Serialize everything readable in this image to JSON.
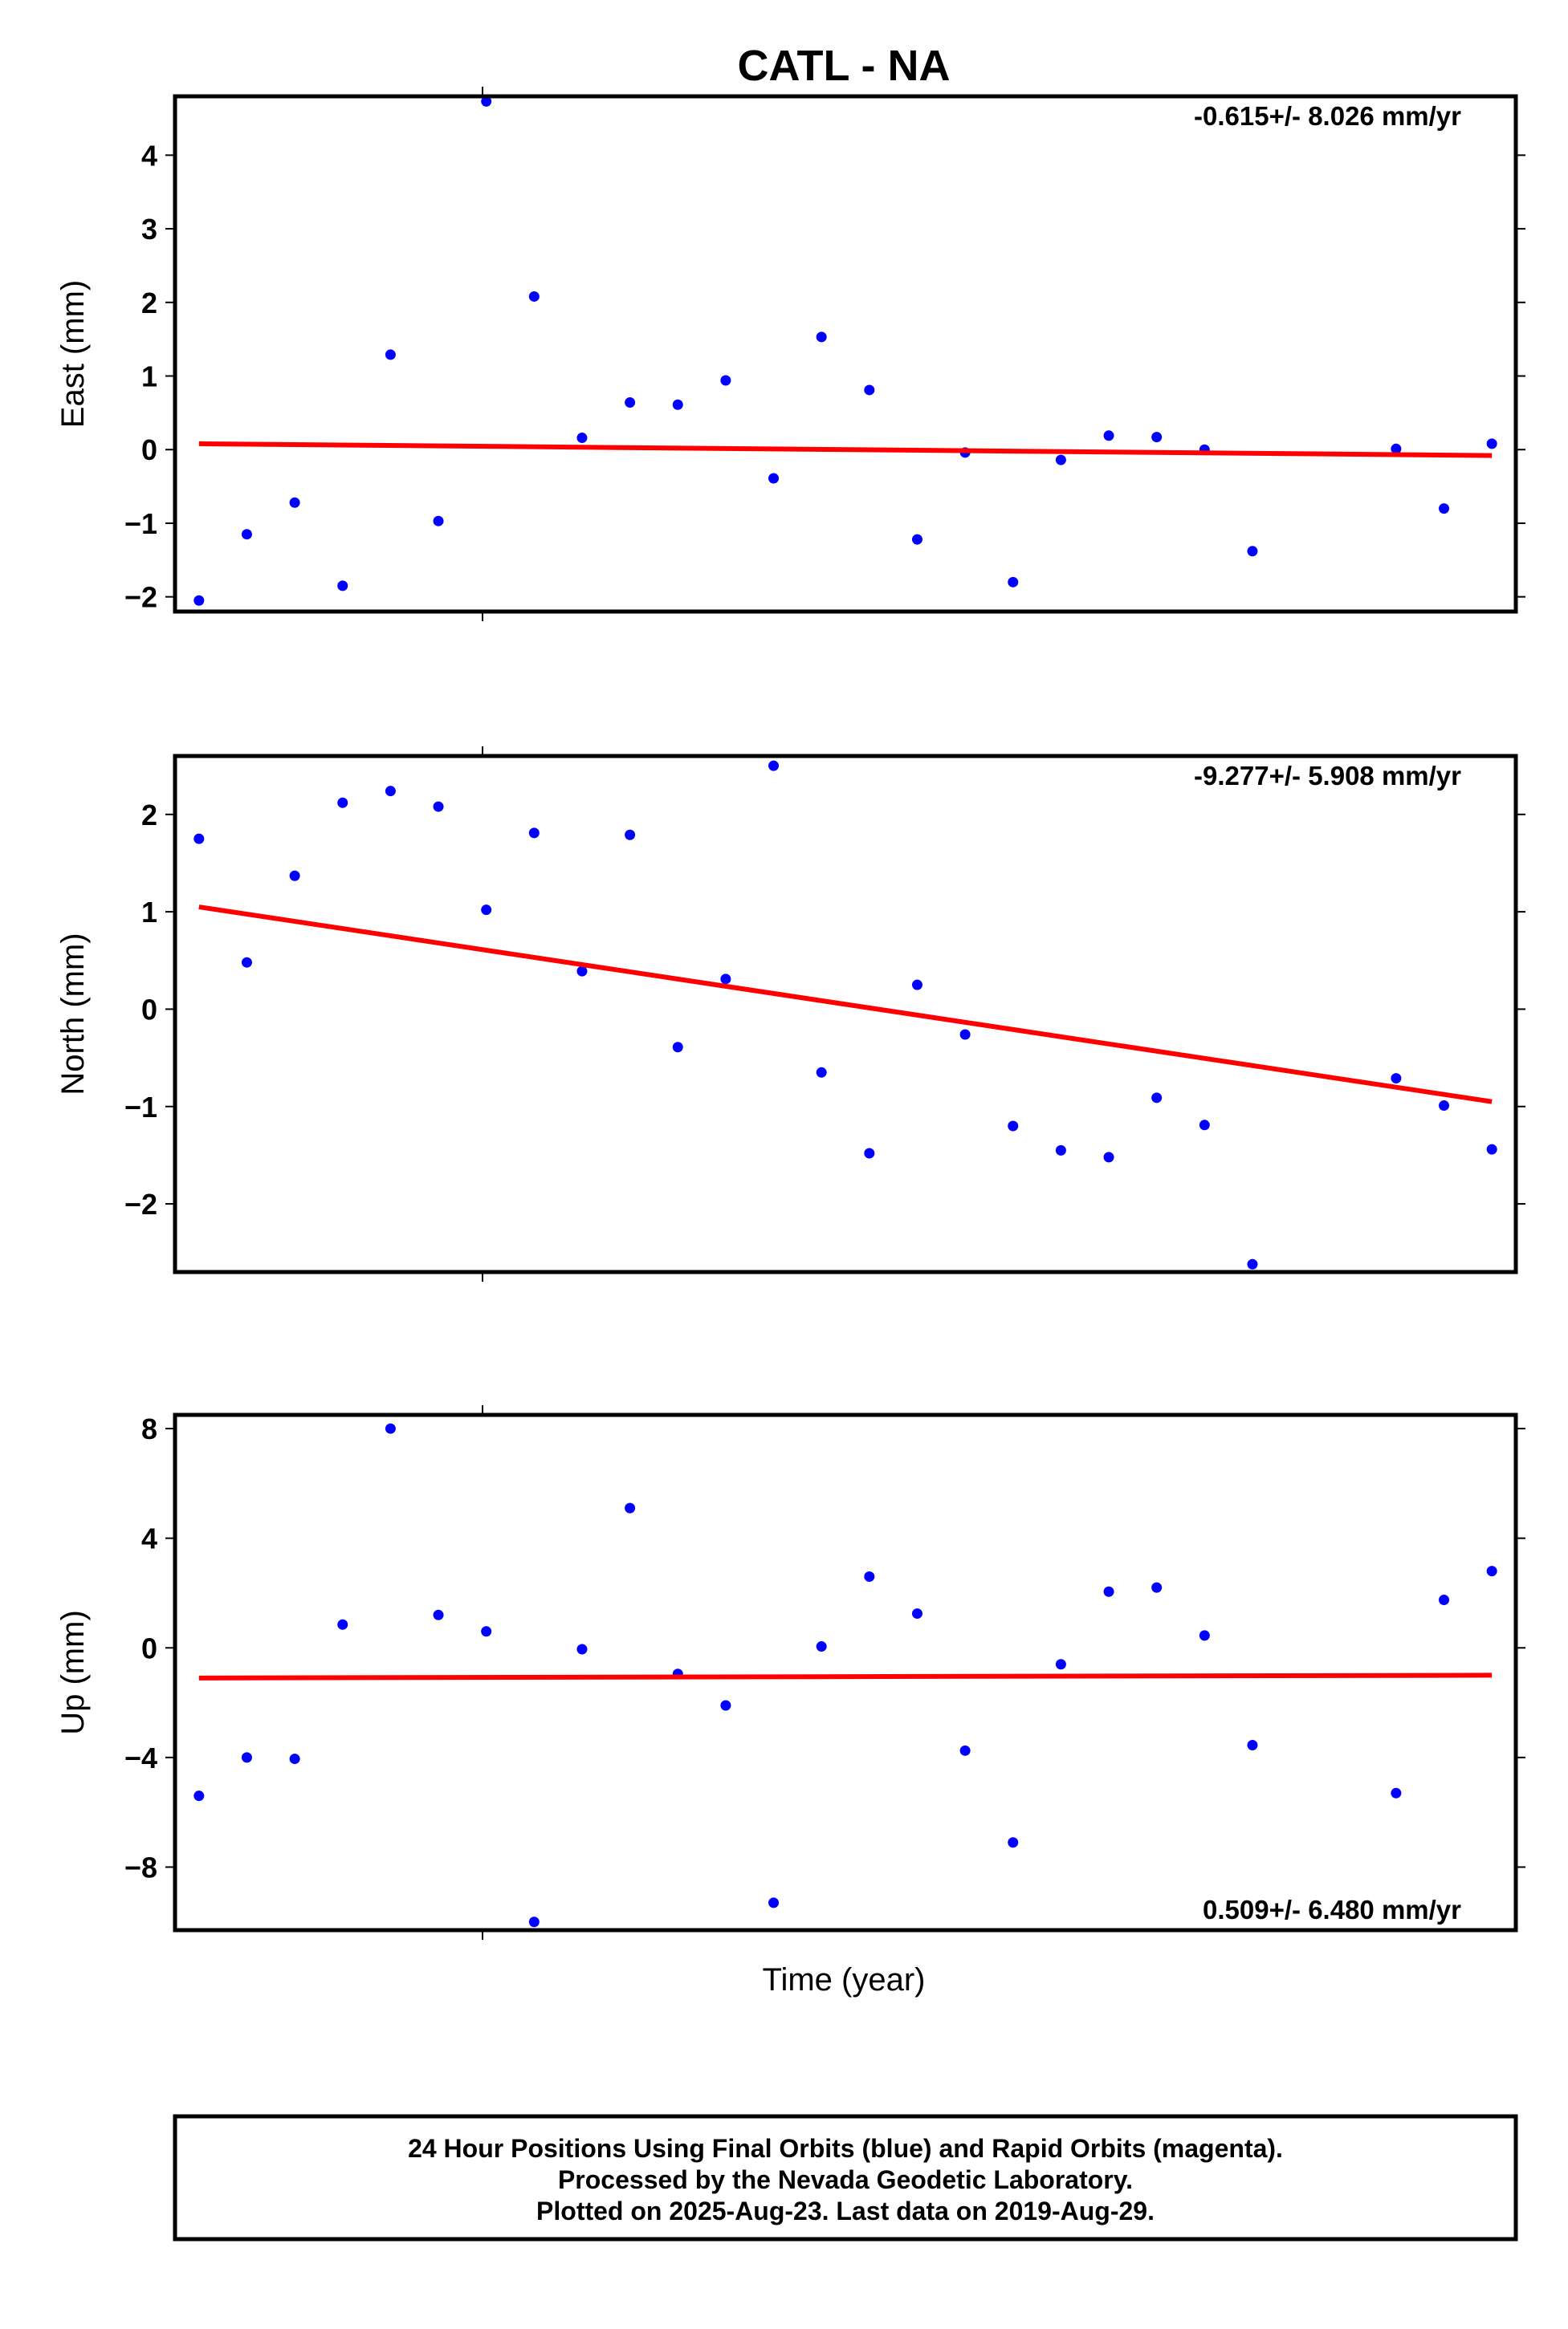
{
  "figure": {
    "title": "CATL - NA",
    "xlabel": "Time (year)",
    "footer": [
      "24 Hour Positions Using Final Orbits (blue) and Rapid Orbits (magenta).",
      "Processed by the Nevada Geodetic Laboratory.",
      "Plotted on 2025-Aug-23. Last data on 2019-Aug-29."
    ]
  },
  "colors": {
    "points": "#0000ff",
    "trend": "#ff0000",
    "frame": "#000000"
  },
  "chart_data": [
    {
      "type": "scatter",
      "ylabel": "East (mm)",
      "rate_label": "-0.615+/- 8.026 mm/yr",
      "rate_position": "top-right",
      "ylim": [
        -2.2,
        4.8
      ],
      "yticks": [
        4,
        3,
        2,
        1,
        0,
        -1,
        -2
      ],
      "ytick_labels": [
        "4",
        "3",
        "2",
        "1",
        "0",
        "−1",
        "−2"
      ],
      "x": [
        0,
        1,
        2,
        3,
        4,
        5,
        6,
        7,
        8,
        9,
        10,
        11,
        12,
        13,
        14,
        15,
        16,
        17,
        18,
        19,
        20,
        21,
        22,
        25,
        26,
        27
      ],
      "y": [
        -2.05,
        -1.15,
        -0.72,
        -1.85,
        1.29,
        -0.97,
        4.73,
        2.08,
        0.16,
        0.64,
        0.61,
        0.94,
        -0.39,
        1.53,
        0.81,
        -1.22,
        -0.04,
        -1.8,
        -0.14,
        0.19,
        0.17,
        0.0,
        -1.38,
        0.01,
        -0.8,
        0.08
      ],
      "trend": {
        "x": [
          0,
          27
        ],
        "y": [
          0.08,
          -0.08
        ]
      }
    },
    {
      "type": "scatter",
      "ylabel": "North (mm)",
      "rate_label": "-9.277+/- 5.908 mm/yr",
      "rate_position": "top-right",
      "ylim": [
        -2.7,
        2.6
      ],
      "yticks": [
        2,
        1,
        0,
        -1,
        -2
      ],
      "ytick_labels": [
        "2",
        "1",
        "0",
        "−1",
        "−2"
      ],
      "x": [
        0,
        1,
        2,
        3,
        4,
        5,
        6,
        7,
        8,
        9,
        10,
        11,
        12,
        13,
        14,
        15,
        16,
        17,
        18,
        19,
        20,
        21,
        22,
        25,
        26,
        27
      ],
      "y": [
        1.75,
        0.48,
        1.37,
        2.12,
        2.24,
        2.08,
        1.02,
        1.81,
        0.39,
        1.79,
        -0.39,
        0.31,
        2.5,
        -0.65,
        -1.48,
        0.25,
        -0.26,
        -1.2,
        -1.45,
        -1.52,
        -0.91,
        -1.19,
        -2.62,
        -0.71,
        -0.99,
        -1.44
      ],
      "trend": {
        "x": [
          0,
          27
        ],
        "y": [
          1.05,
          -0.95
        ]
      }
    },
    {
      "type": "scatter",
      "ylabel": "Up (mm)",
      "rate_label": "0.509+/- 6.480 mm/yr",
      "rate_position": "bottom-right",
      "ylim": [
        -10.3,
        8.5
      ],
      "yticks": [
        8,
        4,
        0,
        -4,
        -8
      ],
      "ytick_labels": [
        "8",
        "4",
        "0",
        "−4",
        "−8"
      ],
      "x": [
        0,
        1,
        2,
        3,
        4,
        5,
        6,
        7,
        8,
        9,
        10,
        11,
        12,
        13,
        14,
        15,
        16,
        17,
        18,
        19,
        20,
        21,
        22,
        25,
        26,
        27
      ],
      "y": [
        -5.4,
        -4.0,
        -4.05,
        0.85,
        8.0,
        1.2,
        0.6,
        -10.0,
        -0.05,
        5.1,
        -0.95,
        -2.1,
        -9.3,
        0.05,
        2.6,
        1.25,
        -3.75,
        -7.1,
        -0.6,
        2.05,
        2.2,
        0.45,
        -3.55,
        -5.3,
        1.75,
        2.8
      ],
      "trend": {
        "x": [
          0,
          27
        ],
        "y": [
          -1.1,
          -1.0
        ]
      }
    }
  ]
}
